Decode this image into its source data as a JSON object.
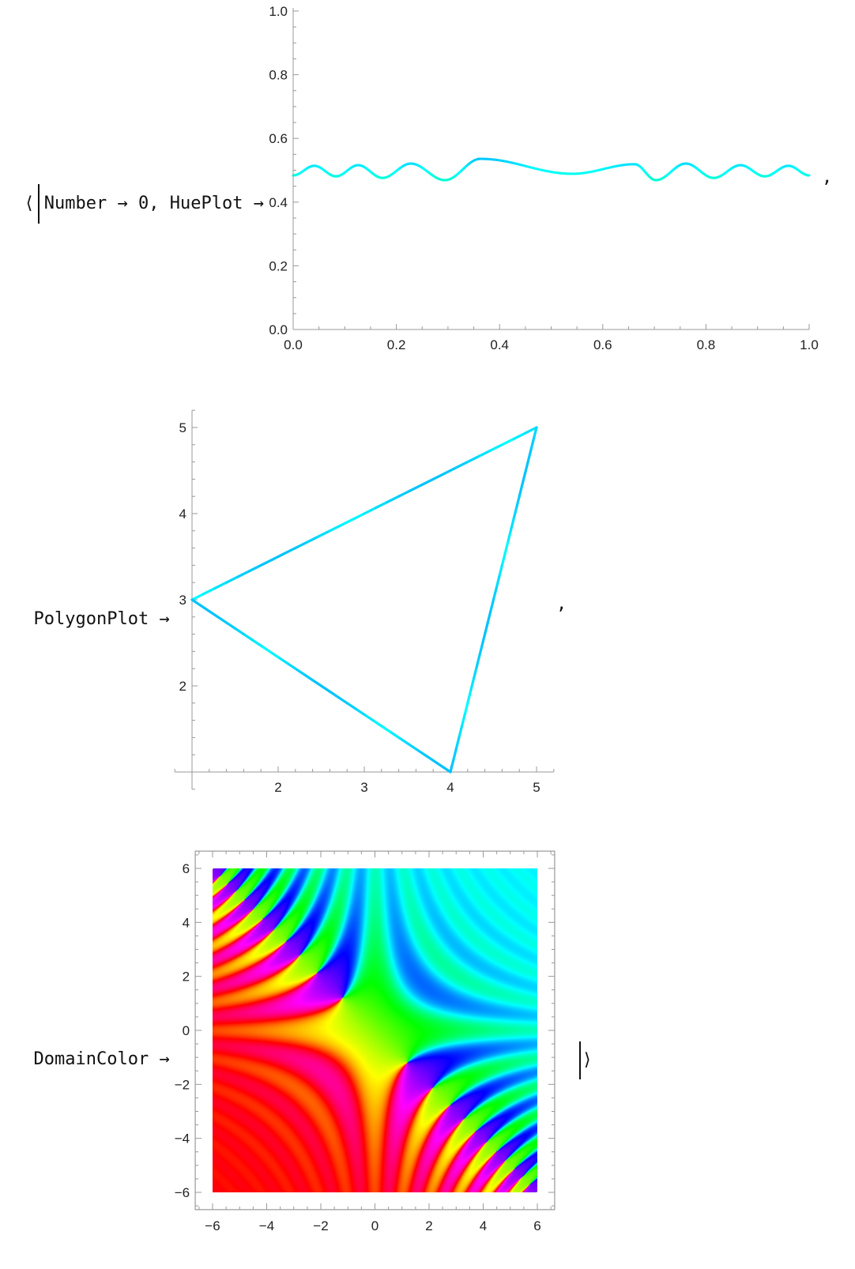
{
  "expression": {
    "open_bracket": "⟨",
    "key_number": "Number",
    "arrow": "→",
    "value_number": "0",
    "comma": ",",
    "key_hueplot": "HuePlot",
    "key_polygonplot": "PolygonPlot",
    "key_domaincolor": "DomainColor",
    "close_bracket": "⟩"
  },
  "colors": {
    "axis": "#999999",
    "text": "#222222"
  },
  "chart_data": [
    {
      "id": "hueplot",
      "type": "line",
      "xlim": [
        0,
        1
      ],
      "ylim": [
        0,
        1
      ],
      "x_ticks": [
        "0.0",
        "0.2",
        "0.4",
        "0.6",
        "0.8",
        "1.0"
      ],
      "y_ticks": [
        "0.0",
        "0.2",
        "0.4",
        "0.6",
        "0.8",
        "1.0"
      ],
      "color_rule": "hue equals y value",
      "points": [
        [
          0,
          0.484
        ],
        [
          0.041,
          0.514
        ],
        [
          0.083,
          0.481
        ],
        [
          0.126,
          0.516
        ],
        [
          0.173,
          0.476
        ],
        [
          0.228,
          0.521
        ],
        [
          0.294,
          0.469
        ],
        [
          0.363,
          0.536
        ],
        [
          0.541,
          0.489
        ],
        [
          0.662,
          0.519
        ],
        [
          0.703,
          0.469
        ],
        [
          0.761,
          0.521
        ],
        [
          0.815,
          0.476
        ],
        [
          0.867,
          0.516
        ],
        [
          0.914,
          0.481
        ],
        [
          0.96,
          0.514
        ],
        [
          1,
          0.484
        ]
      ]
    },
    {
      "id": "polygonplot",
      "type": "line",
      "xlim": [
        0.8,
        5.2
      ],
      "ylim": [
        0.8,
        5.2
      ],
      "axes_origin": [
        1,
        1
      ],
      "x_ticks": [
        "2",
        "3",
        "4",
        "5"
      ],
      "y_ticks": [
        "2",
        "3",
        "4",
        "5"
      ],
      "vertices": [
        [
          1,
          3
        ],
        [
          5,
          5
        ],
        [
          4,
          1
        ]
      ],
      "color": "#00e5f5"
    },
    {
      "id": "domaincolor",
      "type": "heatmap",
      "xlim": [
        -6,
        6
      ],
      "ylim": [
        -6,
        6
      ],
      "x_ticks": [
        "−6",
        "−4",
        "−2",
        "0",
        "2",
        "4",
        "6"
      ],
      "y_ticks": [
        "−6",
        "−4",
        "−2",
        "0",
        "2",
        "4",
        "6"
      ],
      "colormap": "hue by complex argument",
      "frame": true
    }
  ]
}
